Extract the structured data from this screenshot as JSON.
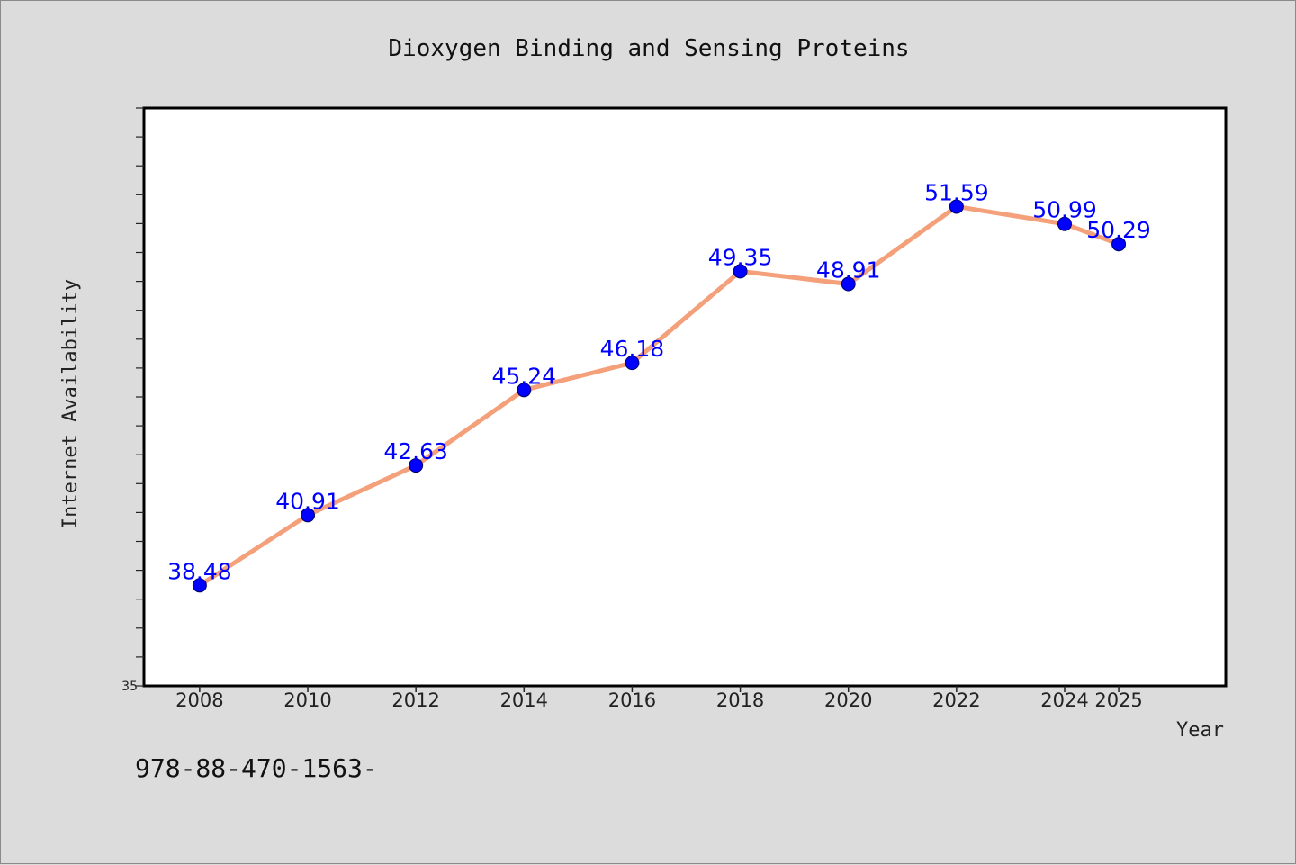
{
  "chart_data": {
    "type": "line",
    "title": "Dioxygen Binding and Sensing Proteins",
    "xlabel": "Year",
    "ylabel": "Internet Availability",
    "categories": [
      "2008",
      "2010",
      "2012",
      "2014",
      "2016",
      "2018",
      "2020",
      "2022",
      "2024",
      "2025"
    ],
    "series": [
      {
        "values": [
          38.48,
          40.91,
          42.63,
          45.24,
          46.18,
          49.35,
          48.91,
          51.59,
          50.99,
          50.29
        ],
        "labels": [
          "38.48",
          "40.91",
          "42.63",
          "45.24",
          "46.18",
          "49.35",
          "48.91",
          "51.59",
          "50.99",
          "50.29"
        ]
      }
    ],
    "ylim": [
      35,
      55
    ],
    "y_tick_labels": [
      "35"
    ],
    "grid": false,
    "legend": "none",
    "colors": {
      "line": "#f4a07a",
      "marker": "#0000ff",
      "data_label": "#0000ff",
      "background": "#dcdcdc",
      "plot_background": "#ffffff"
    }
  },
  "footer": {
    "text": "978-88-470-1563-"
  }
}
